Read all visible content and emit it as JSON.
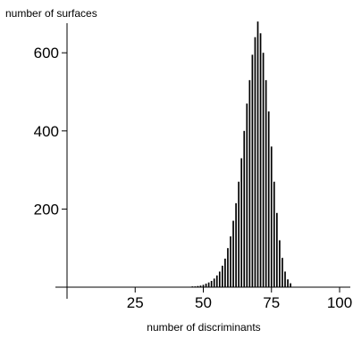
{
  "chart_data": {
    "type": "bar",
    "xlabel": "number of discriminants",
    "ylabel": "number of surfaces",
    "xlim": [
      0,
      100
    ],
    "ylim": [
      0,
      680
    ],
    "xticks": [
      25,
      50,
      75,
      100
    ],
    "yticks": [
      200,
      400,
      600
    ],
    "grid": false,
    "legend": "none",
    "bar_color": "#000000",
    "categories": [
      44,
      45,
      46,
      47,
      48,
      49,
      50,
      51,
      52,
      53,
      54,
      55,
      56,
      57,
      58,
      59,
      60,
      61,
      62,
      63,
      64,
      65,
      66,
      67,
      68,
      69,
      70,
      71,
      72,
      73,
      74,
      75,
      76,
      77,
      78,
      79,
      80,
      81,
      82
    ],
    "values": [
      1,
      1,
      2,
      2,
      3,
      4,
      6,
      9,
      12,
      16,
      22,
      30,
      40,
      55,
      73,
      100,
      130,
      170,
      215,
      270,
      330,
      400,
      470,
      530,
      595,
      640,
      680,
      650,
      600,
      530,
      450,
      360,
      270,
      190,
      120,
      75,
      40,
      20,
      10
    ]
  }
}
